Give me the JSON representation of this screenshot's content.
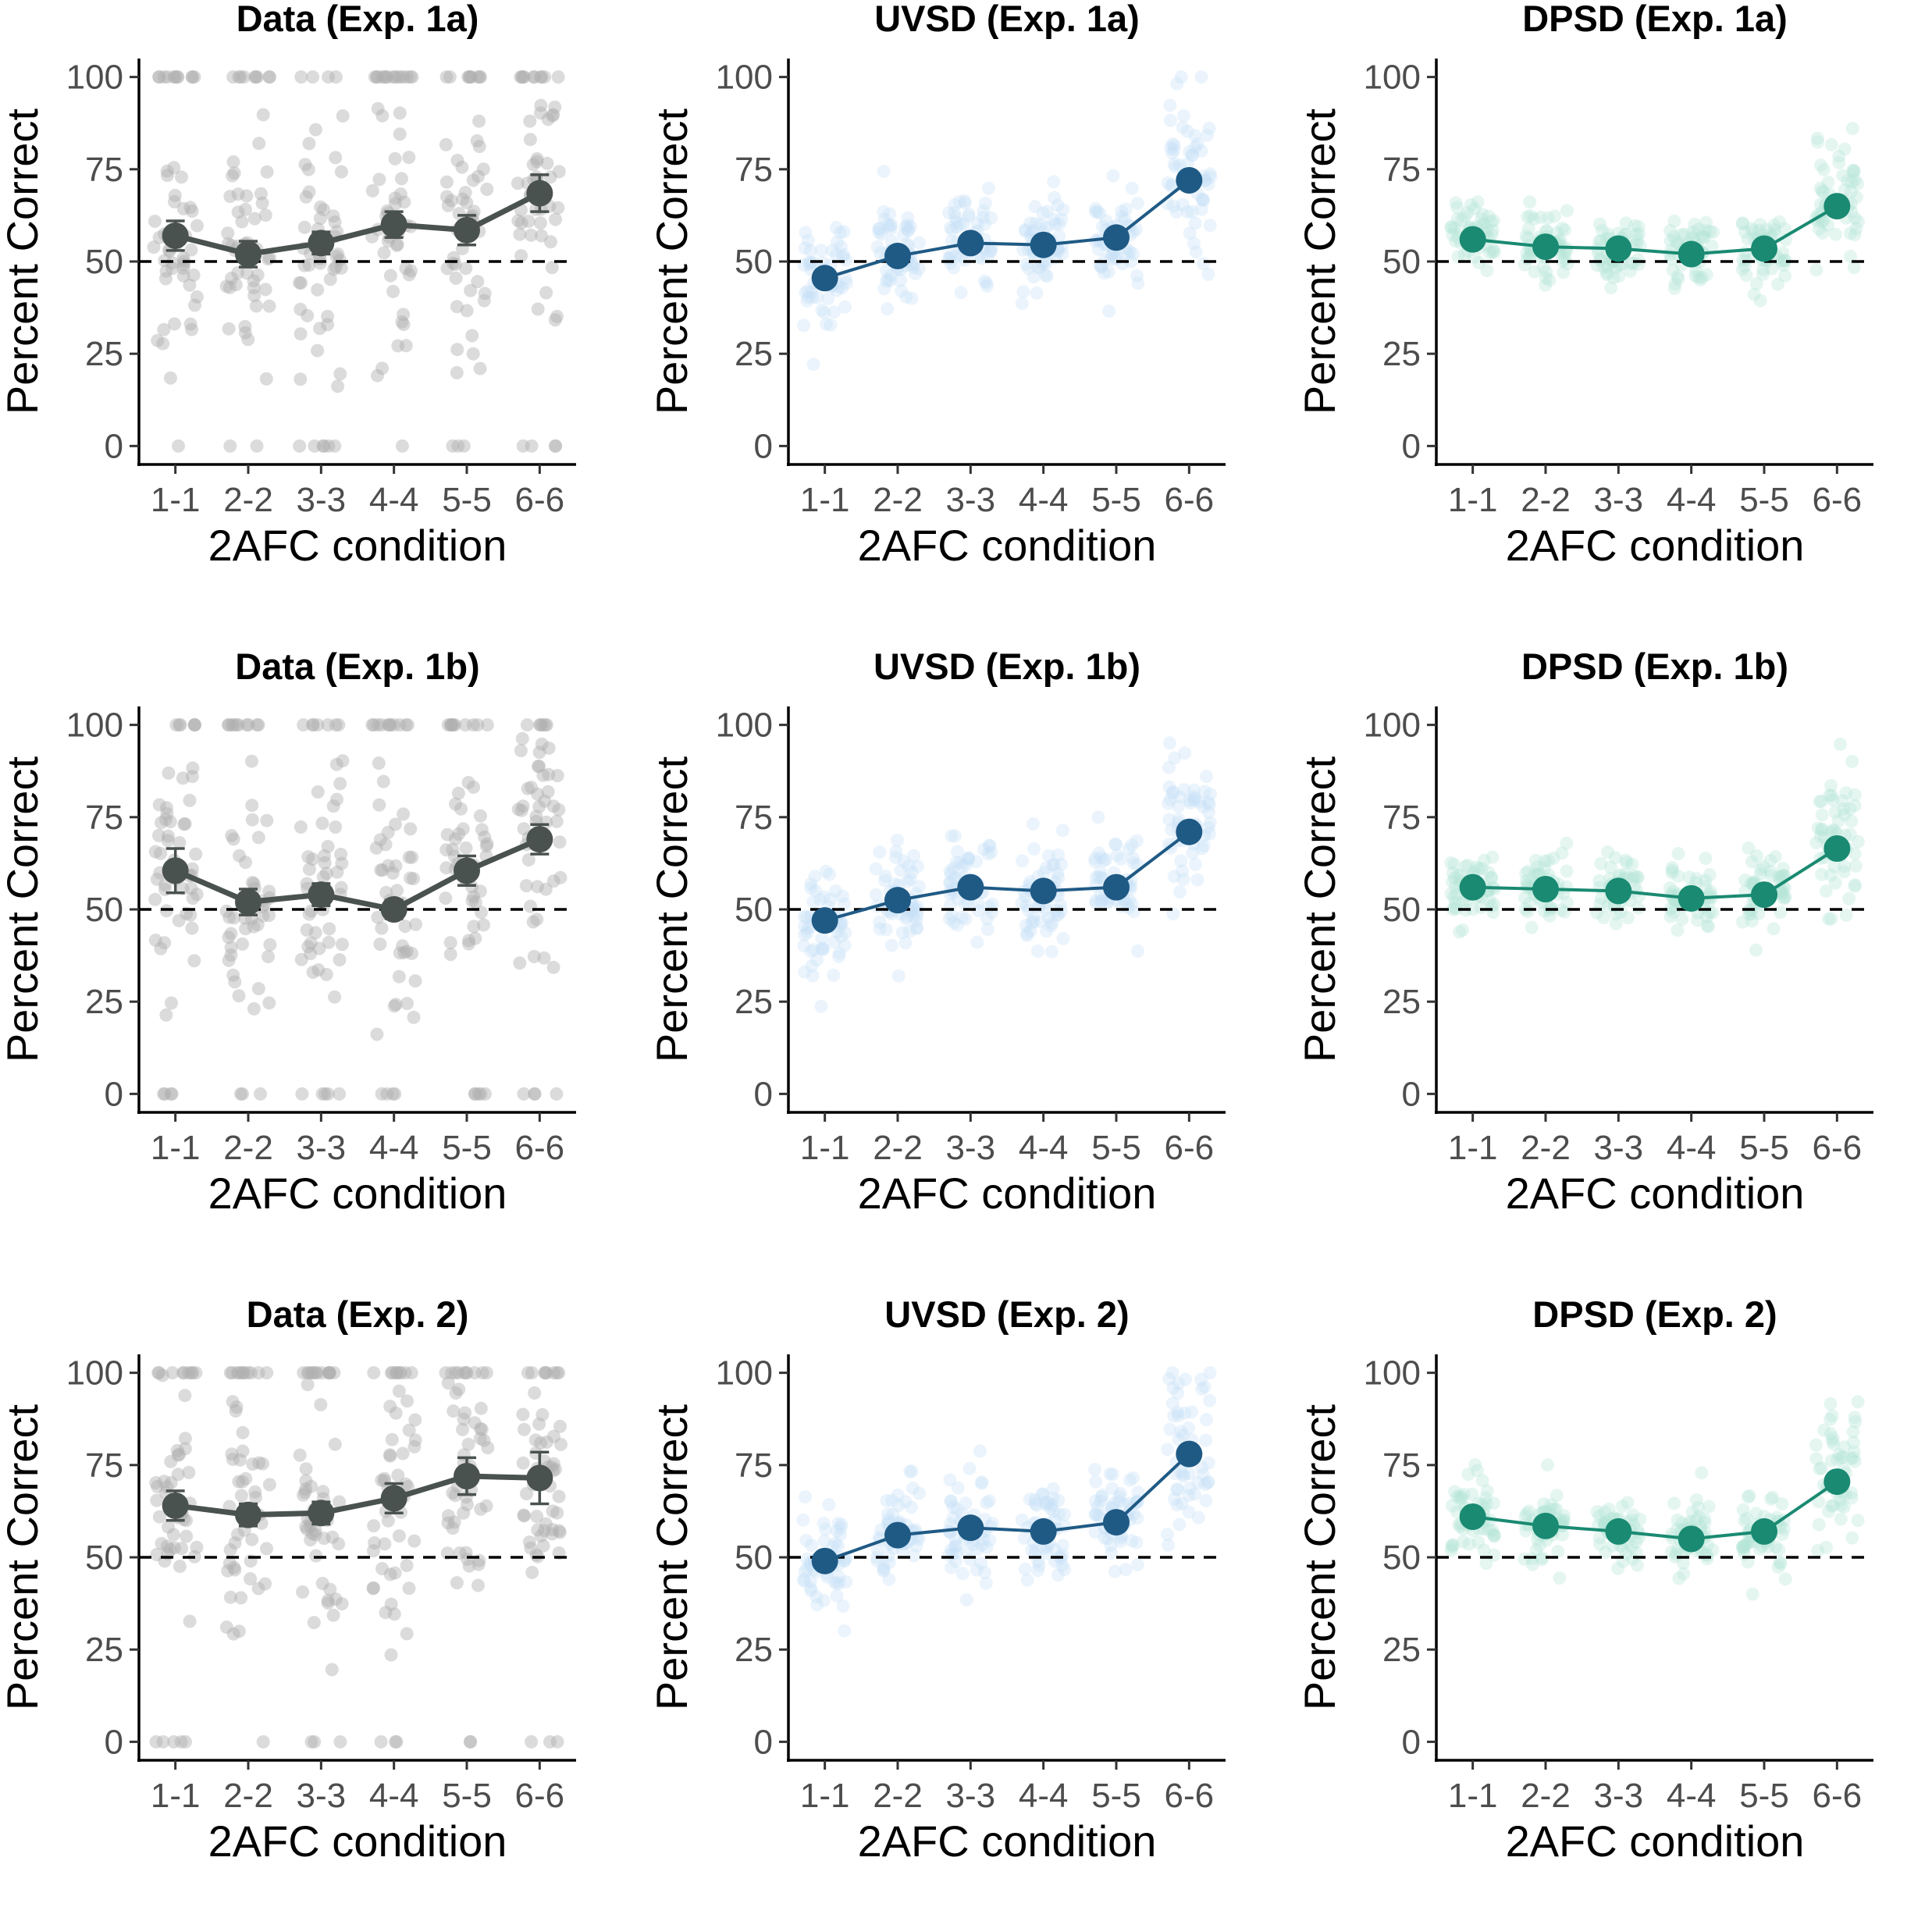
{
  "figure": {
    "background": "#ffffff"
  },
  "colors": {
    "data": "#4a5250",
    "data_points": "#b0b0b0",
    "uvsd": "#1f5a85",
    "uvsd_points": "#c6e0f5",
    "dpsd": "#1a8a72",
    "dpsd_points": "#b5e6d6",
    "reference_line": "#000000"
  },
  "chart_data": [
    {
      "type": "line",
      "title": "Data (Exp. 1a)",
      "xlabel": "2AFC condition",
      "ylabel": "Percent Correct",
      "categories": [
        "1-1",
        "2-2",
        "3-3",
        "4-4",
        "5-5",
        "6-6"
      ],
      "yticks": [
        0,
        25,
        50,
        75,
        100
      ],
      "ylim": [
        -5,
        105
      ],
      "reference_line": 50,
      "series": [
        {
          "values": [
            57,
            52,
            55,
            60,
            58.5,
            68.5
          ],
          "error": [
            4,
            3.5,
            3,
            3.5,
            4,
            5
          ]
        }
      ],
      "individual_points": true,
      "color_key": "data"
    },
    {
      "type": "line",
      "title": "UVSD (Exp. 1a)",
      "xlabel": "2AFC condition",
      "ylabel": "Percent Correct",
      "categories": [
        "1-1",
        "2-2",
        "3-3",
        "4-4",
        "5-5",
        "6-6"
      ],
      "yticks": [
        0,
        25,
        50,
        75,
        100
      ],
      "ylim": [
        -5,
        105
      ],
      "reference_line": 50,
      "series": [
        {
          "values": [
            45.5,
            51.5,
            55,
            54.5,
            56.5,
            72
          ]
        }
      ],
      "individual_points": true,
      "color_key": "uvsd"
    },
    {
      "type": "line",
      "title": "DPSD (Exp. 1a)",
      "xlabel": "2AFC condition",
      "ylabel": "Percent Correct",
      "categories": [
        "1-1",
        "2-2",
        "3-3",
        "4-4",
        "5-5",
        "6-6"
      ],
      "yticks": [
        0,
        25,
        50,
        75,
        100
      ],
      "ylim": [
        -5,
        105
      ],
      "reference_line": 50,
      "series": [
        {
          "values": [
            56,
            54,
            53.5,
            52,
            53.5,
            65
          ]
        }
      ],
      "individual_points": true,
      "color_key": "dpsd"
    },
    {
      "type": "line",
      "title": "Data (Exp. 1b)",
      "xlabel": "2AFC condition",
      "ylabel": "Percent Correct",
      "categories": [
        "1-1",
        "2-2",
        "3-3",
        "4-4",
        "5-5",
        "6-6"
      ],
      "yticks": [
        0,
        25,
        50,
        75,
        100
      ],
      "ylim": [
        -5,
        105
      ],
      "reference_line": 50,
      "series": [
        {
          "values": [
            60.5,
            52,
            54,
            50,
            60.5,
            69
          ],
          "error": [
            6,
            3.5,
            3,
            2.5,
            4,
            4
          ]
        }
      ],
      "individual_points": true,
      "color_key": "data"
    },
    {
      "type": "line",
      "title": "UVSD (Exp. 1b)",
      "xlabel": "2AFC condition",
      "ylabel": "Percent Correct",
      "categories": [
        "1-1",
        "2-2",
        "3-3",
        "4-4",
        "5-5",
        "6-6"
      ],
      "yticks": [
        0,
        25,
        50,
        75,
        100
      ],
      "ylim": [
        -5,
        105
      ],
      "reference_line": 50,
      "series": [
        {
          "values": [
            47,
            52.5,
            56,
            55,
            56,
            71
          ]
        }
      ],
      "individual_points": true,
      "color_key": "uvsd"
    },
    {
      "type": "line",
      "title": "DPSD (Exp. 1b)",
      "xlabel": "2AFC condition",
      "ylabel": "Percent Correct",
      "categories": [
        "1-1",
        "2-2",
        "3-3",
        "4-4",
        "5-5",
        "6-6"
      ],
      "yticks": [
        0,
        25,
        50,
        75,
        100
      ],
      "ylim": [
        -5,
        105
      ],
      "reference_line": 50,
      "series": [
        {
          "values": [
            56,
            55.5,
            55,
            53,
            54,
            66.5
          ]
        }
      ],
      "individual_points": true,
      "color_key": "dpsd"
    },
    {
      "type": "line",
      "title": "Data (Exp. 2)",
      "xlabel": "2AFC condition",
      "ylabel": "Percent Correct",
      "categories": [
        "1-1",
        "2-2",
        "3-3",
        "4-4",
        "5-5",
        "6-6"
      ],
      "yticks": [
        0,
        25,
        50,
        75,
        100
      ],
      "ylim": [
        -5,
        105
      ],
      "reference_line": 50,
      "series": [
        {
          "values": [
            64,
            61.5,
            62,
            66,
            72,
            71.5
          ],
          "error": [
            4,
            3,
            3,
            4,
            5,
            7
          ]
        }
      ],
      "individual_points": true,
      "color_key": "data"
    },
    {
      "type": "line",
      "title": "UVSD (Exp. 2)",
      "xlabel": "2AFC condition",
      "ylabel": "Percent Correct",
      "categories": [
        "1-1",
        "2-2",
        "3-3",
        "4-4",
        "5-5",
        "6-6"
      ],
      "yticks": [
        0,
        25,
        50,
        75,
        100
      ],
      "ylim": [
        -5,
        105
      ],
      "reference_line": 50,
      "series": [
        {
          "values": [
            49,
            56,
            58,
            57,
            59.5,
            78
          ]
        }
      ],
      "individual_points": true,
      "color_key": "uvsd"
    },
    {
      "type": "line",
      "title": "DPSD (Exp. 2)",
      "xlabel": "2AFC condition",
      "ylabel": "Percent Correct",
      "categories": [
        "1-1",
        "2-2",
        "3-3",
        "4-4",
        "5-5",
        "6-6"
      ],
      "yticks": [
        0,
        25,
        50,
        75,
        100
      ],
      "ylim": [
        -5,
        105
      ],
      "reference_line": 50,
      "series": [
        {
          "values": [
            61,
            58.5,
            57,
            55,
            57,
            70.5
          ]
        }
      ],
      "individual_points": true,
      "color_key": "dpsd"
    }
  ]
}
